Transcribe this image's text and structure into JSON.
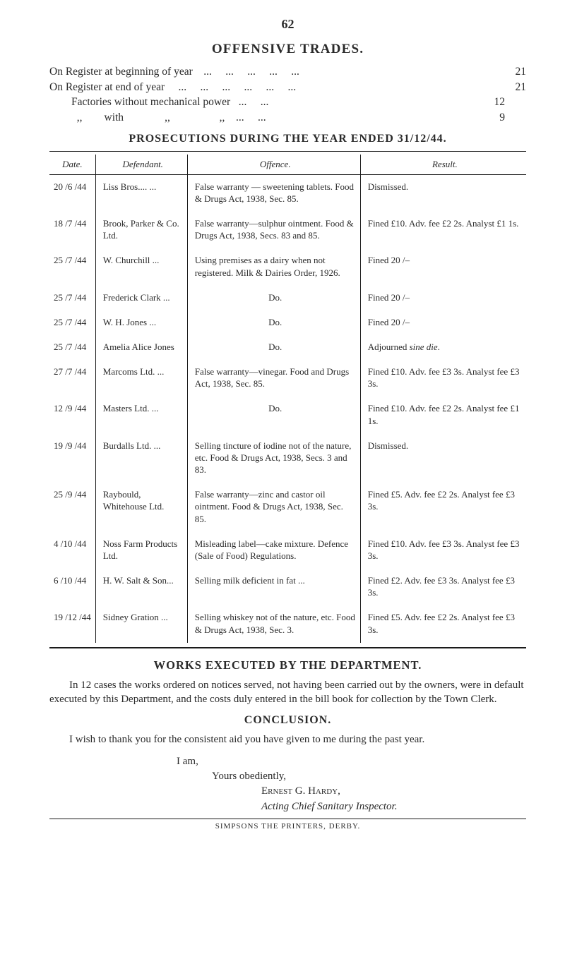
{
  "page_number": "62",
  "main_heading": "OFFENSIVE TRADES.",
  "register_lines": [
    {
      "label": "On Register at beginning of year",
      "value": "21"
    },
    {
      "label": "On Register at end of year",
      "value": "21"
    },
    {
      "label": "        Factories without mechanical power",
      "value": "12"
    },
    {
      "label": "          ,,        with               ,,                  ,,",
      "value": "9"
    }
  ],
  "sub_heading": "PROSECUTIONS DURING THE YEAR ENDED 31/12/44.",
  "table": {
    "headers": {
      "date": "Date.",
      "defendant": "Defendant.",
      "offence": "Offence.",
      "result": "Result."
    },
    "rows": [
      {
        "date": "20 /6 /44",
        "defendant": "Liss Bros....   ...",
        "offence": "False warranty — sweetening tablets. Food & Drugs Act, 1938, Sec. 85.",
        "result": "Dismissed."
      },
      {
        "date": "18 /7 /44",
        "defendant": "Brook, Parker & Co. Ltd.",
        "offence": "False warranty—sulphur ointment. Food & Drugs Act, 1938, Secs. 83 and 85.",
        "result": "Fined £10. Adv. fee £2 2s. Analyst £1 1s."
      },
      {
        "date": "25 /7 /44",
        "defendant": "W. Churchill   ...",
        "offence": "Using premises as a dairy when not registered. Milk & Dairies Order, 1926.",
        "result": "Fined 20 /–"
      },
      {
        "date": "25 /7 /44",
        "defendant": "Frederick Clark ...",
        "offence": "Do.",
        "result": "Fined 20 /–"
      },
      {
        "date": "25 /7 /44",
        "defendant": "W. H. Jones   ...",
        "offence": "Do.",
        "result": "Fined 20 /–"
      },
      {
        "date": "25 /7 /44",
        "defendant": "Amelia Alice Jones",
        "offence": "Do.",
        "result": "Adjourned sine die."
      },
      {
        "date": "27 /7 /44",
        "defendant": "Marcoms Ltd.  ...",
        "offence": "False warranty—vinegar. Food and Drugs Act, 1938, Sec. 85.",
        "result": "Fined £10. Adv. fee £3 3s. Analyst fee £3 3s."
      },
      {
        "date": "12 /9 /44",
        "defendant": "Masters Ltd.  ...",
        "offence": "Do.",
        "result": "Fined £10. Adv. fee £2 2s. Analyst fee £1 1s."
      },
      {
        "date": "19 /9 /44",
        "defendant": "Burdalls Ltd.  ...",
        "offence": "Selling tincture of iodine not of the nature, etc. Food & Drugs Act, 1938, Secs. 3 and 83.",
        "result": "Dismissed."
      },
      {
        "date": "25 /9 /44",
        "defendant": "Raybould, Whitehouse Ltd.",
        "offence": "False warranty—zinc and castor oil ointment. Food & Drugs Act, 1938, Sec. 85.",
        "result": "Fined £5. Adv. fee £2 2s. Analyst fee £3 3s."
      },
      {
        "date": "4 /10 /44",
        "defendant": "Noss Farm Products Ltd.",
        "offence": "Misleading label—cake mixture. Defence (Sale of Food) Regulations.",
        "result": "Fined £10. Adv. fee £3 3s. Analyst fee £3 3s."
      },
      {
        "date": "6 /10 /44",
        "defendant": "H. W. Salt & Son...",
        "offence": "Selling milk deficient in fat ...",
        "result": "Fined £2. Adv. fee £3 3s. Analyst fee £3 3s."
      },
      {
        "date": "19 /12 /44",
        "defendant": "Sidney Gration ...",
        "offence": "Selling whiskey not of the nature, etc. Food & Drugs Act, 1938, Sec. 3.",
        "result": "Fined £5. Adv. fee £2 2s. Analyst fee £3 3s."
      }
    ]
  },
  "works_heading": "WORKS EXECUTED BY THE DEPARTMENT.",
  "works_para": "In 12 cases the works ordered on notices served, not having been carried out by the owners, were in default executed by this Department, and the costs duly entered in the bill book for collection by the Town Clerk.",
  "conclusion_heading": "CONCLUSION.",
  "conclusion_para": "I wish to thank you for the consistent aid you have given to me during the past year.",
  "sig": {
    "iam": "I am,",
    "yours": "Yours obediently,",
    "name": "Ernest G. Hardy,",
    "title": "Acting Chief Sanitary Inspector."
  },
  "footer": "SIMPSONS THE PRINTERS, DERBY.",
  "colors": {
    "background": "#ffffff",
    "text": "#2a2a2a",
    "rule": "#1a1a1a"
  },
  "typography": {
    "body_fontsize_pt": 11,
    "heading_fontsize_pt": 14,
    "font_family": "serif"
  }
}
